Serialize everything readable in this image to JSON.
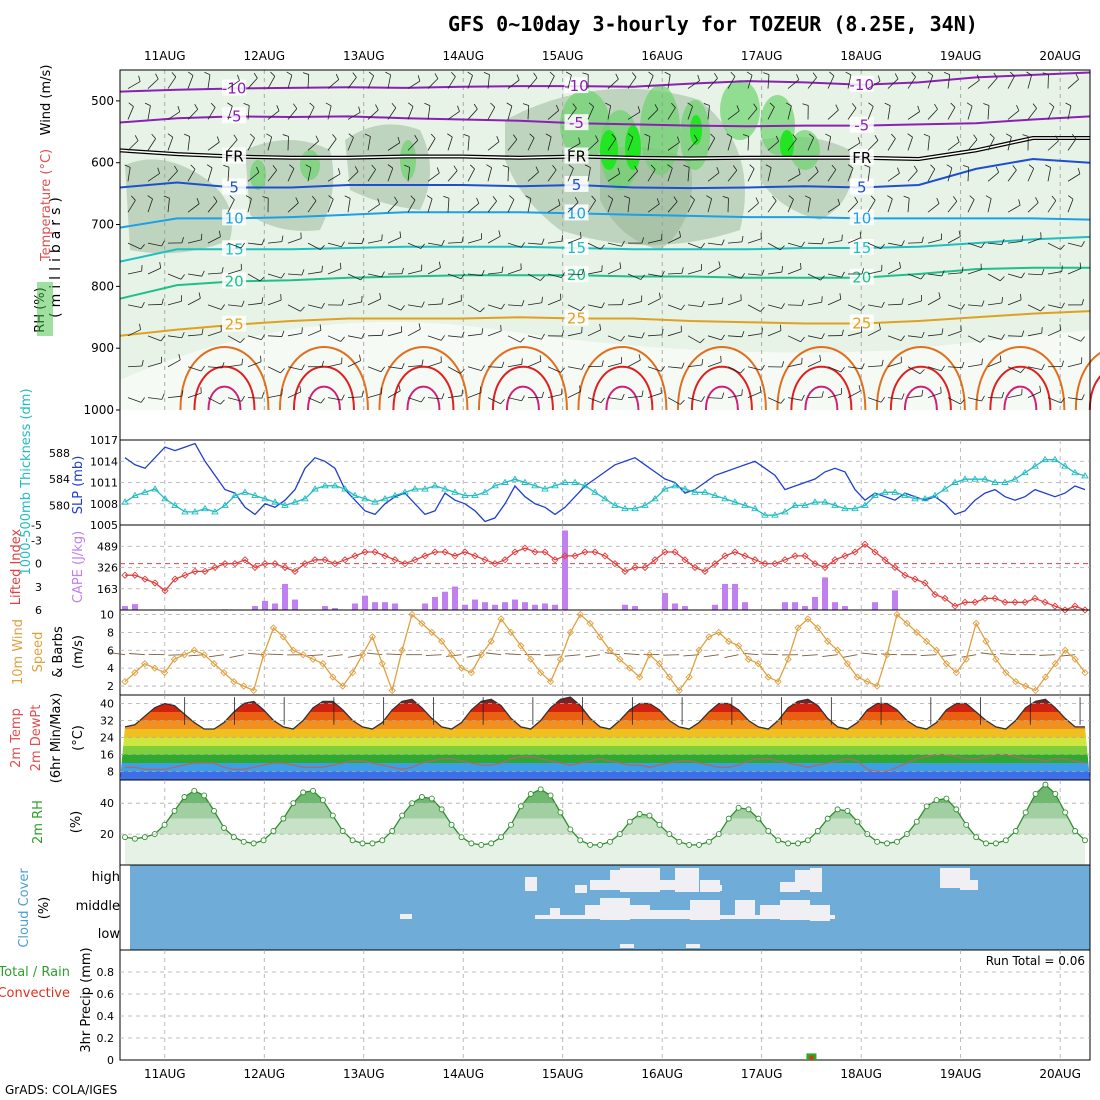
{
  "title": "GFS 0~10day 3-hourly for TOZEUR (8.25E, 34N)",
  "credit": "GrADS: COLA/IGES",
  "colors": {
    "rh_green_light": "#e6f3e6",
    "rh_green_mid": "#a8d8a8",
    "rh_green": "#6cd36c",
    "rh_green_bright": "#22e622",
    "temp_purple": "#8c1fb4",
    "temp_blue": "#1f4fd0",
    "temp_lightblue": "#1f9fe6",
    "temp_cyan": "#1fbfbf",
    "temp_green": "#1fbf8c",
    "temp_orange": "#e0a020",
    "temp_dorange": "#e07020",
    "temp_red": "#e02020",
    "slp_line": "#1f3fd0",
    "thickness_line": "#22bcc2",
    "lifted_line": "#e04040",
    "cape_bar": "#c080f0",
    "wind_line": "#e0a040",
    "cloud_bg": "#6fadd8",
    "cloud_gap": "#f0f0f4",
    "rain_bar": "#22b022",
    "conv_bar": "#e03020"
  },
  "chart_data": [
    {
      "type": "line",
      "panel": "upper-air",
      "ylabel": "(millibars)",
      "side_labels": [
        "RH (%)",
        "Temperature (°C)",
        "Wind (m/s)"
      ],
      "x_dates": [
        "11AUG",
        "12AUG",
        "13AUG",
        "14AUG",
        "15AUG",
        "16AUG",
        "17AUG",
        "18AUG",
        "19AUG",
        "20AUG"
      ],
      "x_range_days": [
        10.55,
        20.3
      ],
      "y_ticks": [
        500,
        600,
        700,
        800,
        900,
        1000
      ],
      "y_range_mb": [
        450,
        1000
      ],
      "isotherm_labels": [
        "-10",
        "-5",
        "FR",
        "5",
        "10",
        "15",
        "20",
        "25"
      ],
      "isotherms": [
        {
          "label": "-10",
          "color_key": "temp_purple",
          "levels_mb": [
            485,
            482,
            480,
            479,
            478,
            479,
            477,
            476,
            476,
            477,
            472,
            468,
            470,
            474,
            470,
            462,
            458,
            454
          ]
        },
        {
          "label": "-5",
          "color_key": "temp_purple",
          "levels_mb": [
            535,
            528,
            525,
            526,
            525,
            528,
            530,
            532,
            536,
            538,
            540,
            541,
            540,
            540,
            538,
            536,
            530,
            525
          ]
        },
        {
          "label": "FR",
          "color_key": "black",
          "levels_mb": [
            580,
            586,
            590,
            592,
            592,
            590,
            590,
            592,
            590,
            592,
            593,
            592,
            592,
            592,
            594,
            580,
            560,
            560
          ]
        },
        {
          "label": "5",
          "color_key": "temp_blue",
          "levels_mb": [
            640,
            632,
            640,
            640,
            636,
            636,
            636,
            638,
            636,
            640,
            641,
            640,
            638,
            640,
            636,
            610,
            594,
            600
          ]
        },
        {
          "label": "10",
          "color_key": "temp_lightblue",
          "levels_mb": [
            705,
            690,
            690,
            688,
            684,
            680,
            680,
            680,
            682,
            684,
            686,
            688,
            688,
            690,
            690,
            690,
            690,
            692
          ]
        },
        {
          "label": "15",
          "color_key": "temp_cyan",
          "levels_mb": [
            760,
            740,
            740,
            740,
            738,
            736,
            736,
            736,
            738,
            740,
            740,
            740,
            738,
            738,
            736,
            730,
            724,
            720
          ]
        },
        {
          "label": "20",
          "color_key": "temp_green",
          "levels_mb": [
            820,
            798,
            792,
            790,
            786,
            784,
            782,
            782,
            782,
            784,
            784,
            786,
            786,
            786,
            780,
            772,
            770,
            770
          ]
        },
        {
          "label": "25",
          "color_key": "temp_orange",
          "levels_mb": [
            880,
            870,
            862,
            856,
            852,
            852,
            852,
            850,
            852,
            852,
            856,
            858,
            860,
            860,
            856,
            850,
            844,
            840
          ]
        }
      ]
    },
    {
      "type": "line",
      "panel": "slp-thickness",
      "ylabel_left": "1000-500mb Thickness (dm)",
      "ylabel_right": "SLP (mb)",
      "slp_ticks": [
        "1017",
        "1014",
        "1011",
        "1008",
        "1005"
      ],
      "thickness_ticks": [
        "588",
        "584",
        "580"
      ],
      "slp_range": [
        1005,
        1017
      ],
      "thickness_range": [
        577,
        590
      ],
      "slp_mb": [
        1014.5,
        1013.5,
        1013,
        1014.5,
        1016,
        1015.5,
        1016,
        1016.5,
        1014,
        1012,
        1010,
        1009.5,
        1007.5,
        1006.5,
        1008,
        1007.5,
        1008.5,
        1010,
        1013,
        1014.5,
        1014,
        1013,
        1010,
        1008.5,
        1007,
        1006.5,
        1008,
        1009,
        1009.5,
        1008,
        1006.5,
        1007,
        1009.5,
        1008.5,
        1008,
        1007,
        1005.5,
        1006,
        1008,
        1010.5,
        1009,
        1008,
        1007.5,
        1006.5,
        1007.5,
        1009,
        1010.5,
        1011.5,
        1012.5,
        1013.5,
        1014,
        1014.5,
        1013.5,
        1012.5,
        1011.5,
        1011,
        1009.5,
        1010,
        1011,
        1012,
        1012.5,
        1013,
        1013.5,
        1014,
        1013,
        1012,
        1010,
        1010.5,
        1011,
        1011.5,
        1012.5,
        1013,
        1012.5,
        1010,
        1008.5,
        1009.5,
        1009,
        1008.5,
        1009.5,
        1009,
        1008.5,
        1009,
        1008,
        1006.5,
        1007,
        1008.5,
        1009.5,
        1010,
        1009,
        1008.5,
        1009,
        1010,
        1009.5,
        1009,
        1009.5,
        1010.5,
        1010
      ],
      "thickness_dm": [
        580.5,
        581.5,
        582,
        582.5,
        581,
        580,
        579,
        579,
        579.5,
        579,
        580,
        581.5,
        582,
        581.5,
        581,
        580.5,
        580,
        580.5,
        581,
        582.5,
        583,
        583,
        582.5,
        581.5,
        581,
        580.5,
        581,
        581.5,
        582,
        582.5,
        582.5,
        583,
        582.5,
        582,
        581.5,
        581.5,
        582,
        583,
        583.5,
        584,
        583.5,
        583,
        582.5,
        583,
        583.5,
        583.5,
        583,
        582,
        581,
        580,
        579.5,
        579.5,
        580,
        581,
        582.5,
        583,
        582.5,
        582,
        582,
        581.5,
        581,
        580.5,
        580,
        579.5,
        578.5,
        578.5,
        579,
        580,
        580,
        580.5,
        580.5,
        580,
        579.5,
        579.5,
        580,
        581.5,
        582,
        582,
        581.5,
        581,
        581,
        581.5,
        582.5,
        583.5,
        584,
        584,
        584,
        583.5,
        583.5,
        584,
        585,
        586,
        587,
        587,
        586,
        585,
        584.5
      ]
    },
    {
      "type": "bar",
      "panel": "lifted-cape",
      "ylabel_left": "Lifted Index",
      "ylabel_right": "CAPE (J/kg)",
      "li_ticks": [
        "-5",
        "-3",
        "0",
        "3",
        "6"
      ],
      "cape_ticks": [
        "489",
        "326",
        "163"
      ],
      "li_range": [
        -5,
        6
      ],
      "cape_range": [
        0,
        652
      ],
      "lifted_index": [
        1.5,
        1.5,
        2,
        2.5,
        3.5,
        2,
        1.5,
        1,
        1,
        0.5,
        0,
        0,
        -0.5,
        0.5,
        0,
        0,
        0.5,
        1,
        0,
        -0.5,
        -0.5,
        0,
        -0.5,
        -1,
        -1.5,
        -1.5,
        -1,
        -0.5,
        0,
        -0.5,
        -1,
        -1.5,
        -1.5,
        -1,
        -1.5,
        -1,
        -0.5,
        0,
        -0.5,
        -1.5,
        -2,
        -1.5,
        -1.5,
        -0.5,
        -1,
        -1,
        -1.5,
        -1.5,
        -1,
        0,
        1,
        0.5,
        0.5,
        -0.5,
        -1.5,
        -1.5,
        -0.5,
        0.5,
        1,
        0,
        -1,
        -1.5,
        -1,
        -0.5,
        0,
        0,
        -0.5,
        -1,
        -1,
        0,
        0.5,
        -0.5,
        -1,
        -1.5,
        -2.5,
        -1.5,
        -0.5,
        0.5,
        1.5,
        2,
        2.5,
        4,
        4.5,
        5.5,
        5,
        5,
        4.5,
        4.5,
        5,
        5,
        5,
        4.5,
        5,
        5.5,
        6,
        5.5,
        6
      ],
      "cape": [
        30,
        45,
        0,
        0,
        0,
        0,
        0,
        0,
        0,
        0,
        5,
        0,
        0,
        30,
        70,
        50,
        200,
        80,
        0,
        0,
        30,
        15,
        0,
        50,
        110,
        60,
        60,
        50,
        0,
        0,
        50,
        100,
        140,
        180,
        40,
        80,
        60,
        40,
        60,
        80,
        60,
        40,
        50,
        40,
        610,
        0,
        0,
        0,
        0,
        0,
        40,
        30,
        0,
        0,
        130,
        50,
        30,
        0,
        0,
        40,
        200,
        200,
        60,
        0,
        0,
        0,
        60,
        60,
        30,
        100,
        250,
        60,
        30,
        0,
        0,
        60,
        0,
        150,
        0,
        0,
        0,
        0,
        0,
        0,
        0,
        0,
        0,
        0,
        0,
        0,
        0,
        0,
        0,
        0,
        0,
        0,
        0
      ]
    },
    {
      "type": "line",
      "panel": "wind",
      "ylabel": "10m Wind Speed (m/s) & Barbs",
      "y_ticks": [
        "10",
        "8",
        "6",
        "4",
        "2"
      ],
      "y_range": [
        1,
        10.5
      ],
      "speed_ms": [
        2.5,
        3.5,
        4.5,
        4,
        3.5,
        5,
        5.5,
        6,
        5.5,
        4.5,
        3.5,
        2.5,
        2,
        1.5,
        5.5,
        8.5,
        7.5,
        6,
        5.5,
        5,
        4.5,
        3,
        2,
        3.5,
        5.5,
        7.5,
        4.5,
        1.5,
        6,
        10,
        9,
        8,
        7,
        5.5,
        4,
        3.5,
        5.5,
        7,
        9.5,
        8,
        6.5,
        5,
        3.5,
        2.5,
        5,
        8,
        10,
        9,
        7.5,
        6,
        5,
        4,
        3,
        5.5,
        4.5,
        3,
        1.5,
        3,
        6,
        7.5,
        8,
        7,
        6.5,
        5,
        4.5,
        3,
        2.5,
        5,
        8.5,
        9.5,
        8.5,
        7,
        6,
        4.5,
        3,
        2.5,
        2,
        5.5,
        10,
        9,
        8,
        7,
        6,
        4.5,
        3.5,
        5,
        9,
        7,
        5,
        3.5,
        2.5,
        2,
        1.5,
        3,
        4.5,
        6,
        5,
        3.5
      ],
      "barb_labels": []
    },
    {
      "type": "area",
      "panel": "temperature",
      "ylabel": "2m Temp 2m DewPt (6hr Min/Max) (°C)",
      "y_ticks": [
        "40",
        "32",
        "24",
        "16",
        "8"
      ],
      "y_range": [
        4,
        44
      ],
      "temp_c": [
        29,
        30,
        34,
        38,
        40,
        39,
        35,
        31,
        28,
        28,
        31,
        36,
        40,
        41,
        37,
        32,
        29,
        28,
        32,
        38,
        41,
        41,
        37,
        32,
        29,
        28,
        31,
        37,
        41,
        42,
        38,
        33,
        29,
        28,
        31,
        37,
        41,
        42,
        39,
        33,
        29,
        28,
        32,
        38,
        42,
        43,
        39,
        33,
        29,
        28,
        32,
        37,
        40,
        40,
        37,
        32,
        29,
        28,
        31,
        36,
        40,
        40,
        37,
        32,
        29,
        28,
        32,
        38,
        41,
        42,
        39,
        33,
        29,
        28,
        31,
        37,
        40,
        40,
        37,
        32,
        29,
        28,
        31,
        37,
        40,
        40,
        36,
        32,
        29,
        28,
        32,
        38,
        41,
        42,
        38,
        33,
        29,
        29
      ],
      "dewpt_c": [
        10,
        10,
        9,
        9,
        9,
        10,
        11,
        12,
        12,
        12,
        10,
        9,
        9,
        10,
        11,
        12,
        12,
        11,
        10,
        10,
        10,
        11,
        12,
        13,
        13,
        12,
        11,
        10,
        9,
        10,
        12,
        13,
        14,
        14,
        13,
        12,
        11,
        11,
        12,
        14,
        15,
        15,
        14,
        13,
        12,
        11,
        12,
        13,
        14,
        13,
        12,
        11,
        11,
        10,
        11,
        12,
        13,
        13,
        12,
        11,
        10,
        10,
        11,
        13,
        14,
        14,
        13,
        12,
        11,
        10,
        11,
        12,
        13,
        14,
        13,
        9,
        8,
        8,
        10,
        12,
        14,
        15,
        16,
        16,
        15,
        14,
        14,
        15,
        16,
        16,
        15,
        14,
        14,
        13,
        14,
        14,
        13,
        12
      ]
    },
    {
      "type": "area",
      "panel": "relative-humidity",
      "ylabel": "2m RH (%)",
      "y_ticks": [
        "40",
        "20"
      ],
      "y_range": [
        0,
        55
      ],
      "rh_pct": [
        18,
        17,
        18,
        20,
        26,
        35,
        44,
        48,
        45,
        35,
        24,
        18,
        15,
        14,
        16,
        22,
        30,
        40,
        47,
        48,
        42,
        32,
        22,
        16,
        14,
        14,
        16,
        22,
        32,
        40,
        44,
        43,
        36,
        26,
        18,
        14,
        13,
        14,
        18,
        26,
        38,
        46,
        49,
        45,
        34,
        23,
        16,
        13,
        13,
        15,
        20,
        28,
        33,
        32,
        26,
        20,
        15,
        13,
        13,
        15,
        20,
        30,
        37,
        36,
        30,
        22,
        16,
        14,
        14,
        16,
        22,
        30,
        36,
        35,
        28,
        20,
        15,
        14,
        15,
        20,
        28,
        38,
        42,
        43,
        36,
        26,
        18,
        14,
        14,
        16,
        22,
        34,
        46,
        52,
        46,
        34,
        22,
        16
      ]
    },
    {
      "type": "heatmap",
      "panel": "cloud-cover",
      "ylabel": "Cloud Cover (%)",
      "levels": [
        "high",
        "middle",
        "low"
      ]
    },
    {
      "type": "bar",
      "panel": "precipitation",
      "ylabel_left": "Total / Rain Convective",
      "ylabel_right": "3hr Precip (mm)",
      "y_ticks": [
        "0.8",
        "0.6",
        "0.4",
        "0.2",
        "0"
      ],
      "y_range": [
        0,
        1.0
      ],
      "run_total_label": "Run Total = 0.06",
      "bars": [
        {
          "date_day": 17.5,
          "total_mm": 0.06,
          "convective_mm": 0.04
        }
      ]
    }
  ]
}
